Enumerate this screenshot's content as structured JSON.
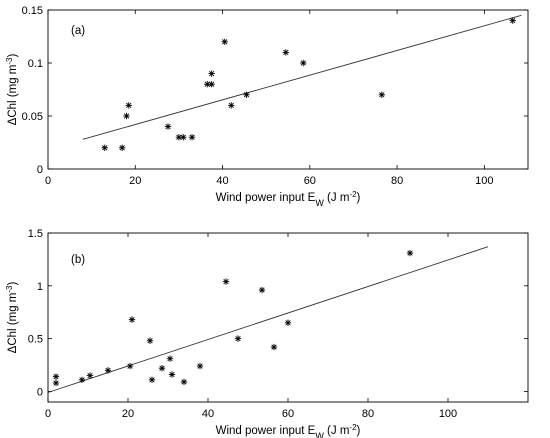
{
  "chart_data": [
    {
      "type": "scatter",
      "panel_label": "(a)",
      "xlabel": {
        "main": "Wind power input E",
        "sub": "W",
        "units": " (J m",
        "exp": "-2",
        "close": ")"
      },
      "ylabel": {
        "main": "ΔChl (mg m",
        "exp": "-3",
        "close": ")"
      },
      "xlim": [
        0,
        110
      ],
      "ylim": [
        0,
        0.15
      ],
      "xticks": [
        0,
        20,
        40,
        60,
        80,
        100
      ],
      "xtick_labels": [
        "0",
        "20",
        "40",
        "60",
        "80",
        "100"
      ],
      "yticks": [
        0,
        0.05,
        0.1,
        0.15
      ],
      "ytick_labels": [
        "0",
        "0.05",
        "0.1",
        "0.15"
      ],
      "points": [
        {
          "x": 13,
          "y": 0.02
        },
        {
          "x": 17,
          "y": 0.02
        },
        {
          "x": 18,
          "y": 0.05
        },
        {
          "x": 18.5,
          "y": 0.06
        },
        {
          "x": 27.5,
          "y": 0.04
        },
        {
          "x": 30,
          "y": 0.03
        },
        {
          "x": 31,
          "y": 0.03
        },
        {
          "x": 33,
          "y": 0.03
        },
        {
          "x": 36.5,
          "y": 0.08
        },
        {
          "x": 37.5,
          "y": 0.08
        },
        {
          "x": 37.5,
          "y": 0.09
        },
        {
          "x": 40.5,
          "y": 0.12
        },
        {
          "x": 42,
          "y": 0.06
        },
        {
          "x": 45.5,
          "y": 0.07
        },
        {
          "x": 54.5,
          "y": 0.11
        },
        {
          "x": 58.5,
          "y": 0.1
        },
        {
          "x": 76.5,
          "y": 0.07
        },
        {
          "x": 106.5,
          "y": 0.14
        }
      ],
      "fit_line": {
        "x": [
          8,
          108.5
        ],
        "y": [
          0.028,
          0.145
        ]
      }
    },
    {
      "type": "scatter",
      "panel_label": "(b)",
      "xlabel": {
        "main": "Wind power input E",
        "sub": "W",
        "units": " (J m",
        "exp": "-2",
        "close": ")"
      },
      "ylabel": {
        "main": "ΔChl (mg m",
        "exp": "-3",
        "close": ")"
      },
      "xlim": [
        0,
        120
      ],
      "ylim": [
        -0.1,
        1.5
      ],
      "xticks": [
        0,
        20,
        40,
        60,
        80,
        100
      ],
      "xtick_labels": [
        "0",
        "20",
        "40",
        "60",
        "80",
        "100"
      ],
      "yticks": [
        0,
        0.5,
        1,
        1.5
      ],
      "ytick_labels": [
        "0",
        "0.5",
        "1",
        "1.5"
      ],
      "points": [
        {
          "x": 2,
          "y": 0.14
        },
        {
          "x": 2,
          "y": 0.08
        },
        {
          "x": 8.5,
          "y": 0.11
        },
        {
          "x": 10.5,
          "y": 0.15
        },
        {
          "x": 15,
          "y": 0.2
        },
        {
          "x": 20.5,
          "y": 0.24
        },
        {
          "x": 21,
          "y": 0.68
        },
        {
          "x": 25.5,
          "y": 0.48
        },
        {
          "x": 26,
          "y": 0.11
        },
        {
          "x": 28.5,
          "y": 0.22
        },
        {
          "x": 30.5,
          "y": 0.31
        },
        {
          "x": 31,
          "y": 0.16
        },
        {
          "x": 34,
          "y": 0.09
        },
        {
          "x": 38,
          "y": 0.24
        },
        {
          "x": 44.5,
          "y": 1.04
        },
        {
          "x": 47.5,
          "y": 0.5
        },
        {
          "x": 53.5,
          "y": 0.96
        },
        {
          "x": 56.5,
          "y": 0.42
        },
        {
          "x": 60,
          "y": 0.65
        },
        {
          "x": 90.5,
          "y": 1.31
        }
      ],
      "fit_line": {
        "x": [
          0,
          110
        ],
        "y": [
          -0.01,
          1.37
        ]
      }
    }
  ]
}
